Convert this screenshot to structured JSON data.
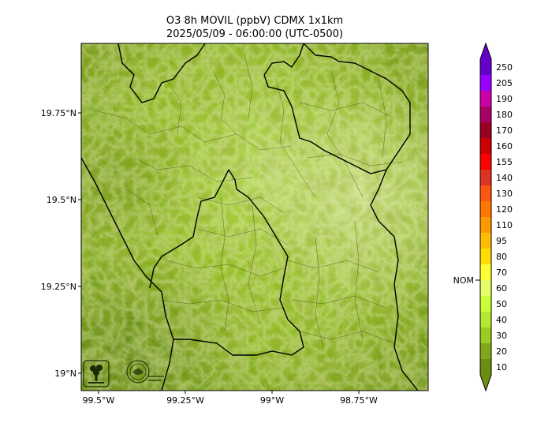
{
  "title": {
    "line1": "O3 8h MOVIL (ppbV) CDMX 1x1km",
    "line2": "2025/05/09 - 06:00:00 (UTC-0500)"
  },
  "map": {
    "lat_ticks": [
      {
        "value": 19.75,
        "label": "19.75°N"
      },
      {
        "value": 19.5,
        "label": "19.5°N"
      },
      {
        "value": 19.25,
        "label": "19.25°N"
      },
      {
        "value": 19.0,
        "label": "19°N"
      }
    ],
    "lon_ticks": [
      {
        "value": -99.5,
        "label": "99.5°W"
      },
      {
        "value": -99.25,
        "label": "99.25°W"
      },
      {
        "value": -99.0,
        "label": "99°W"
      },
      {
        "value": -98.75,
        "label": "98.75°W"
      }
    ],
    "lon_range": [
      -99.55,
      -98.55
    ],
    "lat_range": [
      18.95,
      19.95
    ],
    "logos": [
      "sedema-logo",
      "cdmx-seal-logo"
    ]
  },
  "colorbar": {
    "levels": [
      10,
      20,
      30,
      40,
      50,
      60,
      70,
      80,
      95,
      110,
      120,
      130,
      140,
      155,
      160,
      170,
      180,
      190,
      205,
      250
    ],
    "labels": [
      "10",
      "20",
      "30",
      "40",
      "50",
      "60",
      "70",
      "80",
      "95",
      "110",
      "120",
      "130",
      "140",
      "155",
      "160",
      "170",
      "180",
      "190",
      "205",
      "250"
    ],
    "colors": [
      "#6b8e10",
      "#82a81a",
      "#9acd1f",
      "#b4e832",
      "#ccff33",
      "#e6ff66",
      "#ffff33",
      "#ffdd00",
      "#ffbb00",
      "#ff9900",
      "#ff7700",
      "#ff5511",
      "#dd3322",
      "#ff0000",
      "#cc0000",
      "#990022",
      "#aa0066",
      "#cc00aa",
      "#9900ff",
      "#6600cc"
    ],
    "nom_label": "NOM",
    "nom_value": 65
  }
}
